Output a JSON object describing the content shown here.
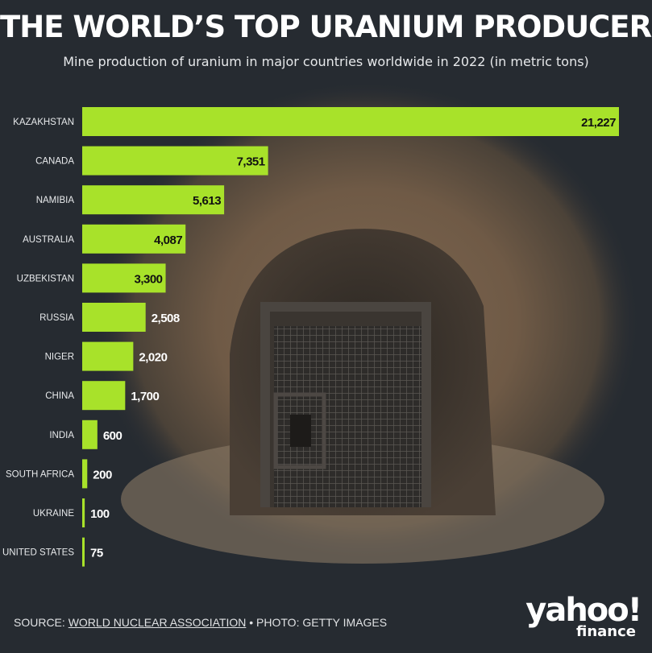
{
  "title": "THE WORLD’S TOP URANIUM PRODUCERS",
  "subtitle": "Mine production of uranium in major countries worldwide in 2022 (in metric tons)",
  "footer": {
    "source_prefix": "SOURCE: ",
    "source_link": "WORLD NUCLEAR ASSOCIATION",
    "photo_credit": " • PHOTO: GETTY IMAGES"
  },
  "logo": {
    "line1": "yahoo!",
    "line2": "finance"
  },
  "colors": {
    "bar": "#a8e22a",
    "background": "#262b31",
    "text": "#ffffff"
  },
  "chart_data": {
    "type": "bar",
    "orientation": "horizontal",
    "categories": [
      "KAZAKHSTAN",
      "CANADA",
      "NAMIBIA",
      "AUSTRALIA",
      "UZBEKISTAN",
      "RUSSIA",
      "NIGER",
      "CHINA",
      "INDIA",
      "SOUTH AFRICA",
      "UKRAINE",
      "UNITED STATES"
    ],
    "values": [
      21227,
      7351,
      5613,
      4087,
      3300,
      2508,
      2020,
      1700,
      600,
      200,
      100,
      75
    ],
    "labels": [
      "21,227",
      "7,351",
      "5,613",
      "4,087",
      "3,300",
      "2,508",
      "2,020",
      "1,700",
      "600",
      "200",
      "100",
      "75"
    ],
    "grid": false,
    "legend": "none"
  }
}
